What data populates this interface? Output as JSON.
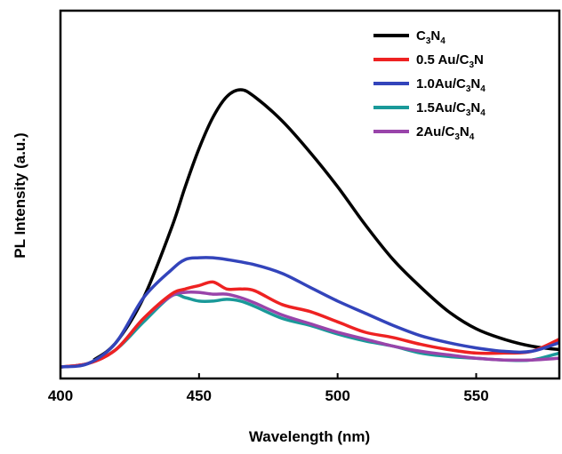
{
  "chart_data": {
    "type": "line",
    "title": "",
    "xlabel": "Wavelength (nm)",
    "ylabel": "PL Intensity (a.u.)",
    "xlim": [
      400,
      580
    ],
    "ylim": [
      0,
      1.0
    ],
    "xticks": [
      400,
      450,
      500,
      550
    ],
    "xtick_labels": [
      "400",
      "450",
      "500",
      "550"
    ],
    "yticks_shown": false,
    "grid": false,
    "legend_position": "top-right",
    "series": [
      {
        "name": "C3N4",
        "label": {
          "main": "C",
          "sub1": "3",
          "mid": "N",
          "sub2": "4"
        },
        "color": "#000000",
        "x": [
          412,
          420,
          430,
          440,
          445,
          450,
          455,
          460,
          465,
          470,
          480,
          490,
          500,
          510,
          520,
          530,
          540,
          550,
          560,
          570,
          580
        ],
        "y": [
          0.02,
          0.07,
          0.2,
          0.4,
          0.52,
          0.63,
          0.72,
          0.78,
          0.8,
          0.78,
          0.71,
          0.62,
          0.52,
          0.41,
          0.31,
          0.23,
          0.16,
          0.11,
          0.08,
          0.06,
          0.05
        ]
      },
      {
        "name": "0.5 Au/C3N",
        "label": {
          "main": "0.5 Au/C",
          "sub1": "3",
          "mid": "N",
          "sub2": ""
        },
        "color": "#ee2222",
        "x": [
          400,
          410,
          420,
          430,
          440,
          445,
          450,
          455,
          460,
          465,
          470,
          480,
          490,
          500,
          510,
          520,
          530,
          540,
          550,
          560,
          570,
          580
        ],
        "y": [
          0.0,
          0.01,
          0.05,
          0.14,
          0.21,
          0.225,
          0.235,
          0.245,
          0.225,
          0.225,
          0.22,
          0.18,
          0.16,
          0.13,
          0.1,
          0.085,
          0.065,
          0.05,
          0.04,
          0.04,
          0.045,
          0.08
        ]
      },
      {
        "name": "1.0Au/C3N4",
        "label": {
          "main": "1.0Au/C",
          "sub1": "3",
          "mid": "N",
          "sub2": "4"
        },
        "color": "#3344bb",
        "x": [
          400,
          410,
          420,
          430,
          440,
          445,
          450,
          455,
          460,
          470,
          480,
          490,
          500,
          510,
          520,
          530,
          540,
          550,
          560,
          570,
          580
        ],
        "y": [
          0.0,
          0.01,
          0.07,
          0.2,
          0.28,
          0.31,
          0.315,
          0.315,
          0.31,
          0.295,
          0.27,
          0.23,
          0.19,
          0.155,
          0.12,
          0.09,
          0.07,
          0.055,
          0.045,
          0.045,
          0.07
        ]
      },
      {
        "name": "1.5Au/C3N4",
        "label": {
          "main": "1.5Au/C",
          "sub1": "3",
          "mid": "N",
          "sub2": "4"
        },
        "color": "#1a9999",
        "x": [
          400,
          410,
          420,
          430,
          440,
          445,
          450,
          455,
          460,
          465,
          470,
          480,
          490,
          500,
          510,
          520,
          530,
          540,
          550,
          560,
          570,
          580
        ],
        "y": [
          0.0,
          0.01,
          0.05,
          0.13,
          0.205,
          0.2,
          0.19,
          0.19,
          0.195,
          0.19,
          0.175,
          0.14,
          0.12,
          0.095,
          0.075,
          0.06,
          0.04,
          0.03,
          0.025,
          0.02,
          0.02,
          0.04
        ]
      },
      {
        "name": "2Au/C3N4",
        "label": {
          "main": "2Au/C",
          "sub1": "3",
          "mid": "N",
          "sub2": "4"
        },
        "color": "#9944aa",
        "x": [
          400,
          410,
          420,
          430,
          440,
          445,
          450,
          455,
          460,
          465,
          470,
          480,
          490,
          500,
          510,
          520,
          530,
          540,
          550,
          560,
          570,
          580
        ],
        "y": [
          0.0,
          0.01,
          0.05,
          0.14,
          0.205,
          0.215,
          0.215,
          0.21,
          0.21,
          0.2,
          0.185,
          0.15,
          0.125,
          0.1,
          0.08,
          0.06,
          0.045,
          0.035,
          0.025,
          0.02,
          0.02,
          0.025
        ]
      }
    ]
  }
}
